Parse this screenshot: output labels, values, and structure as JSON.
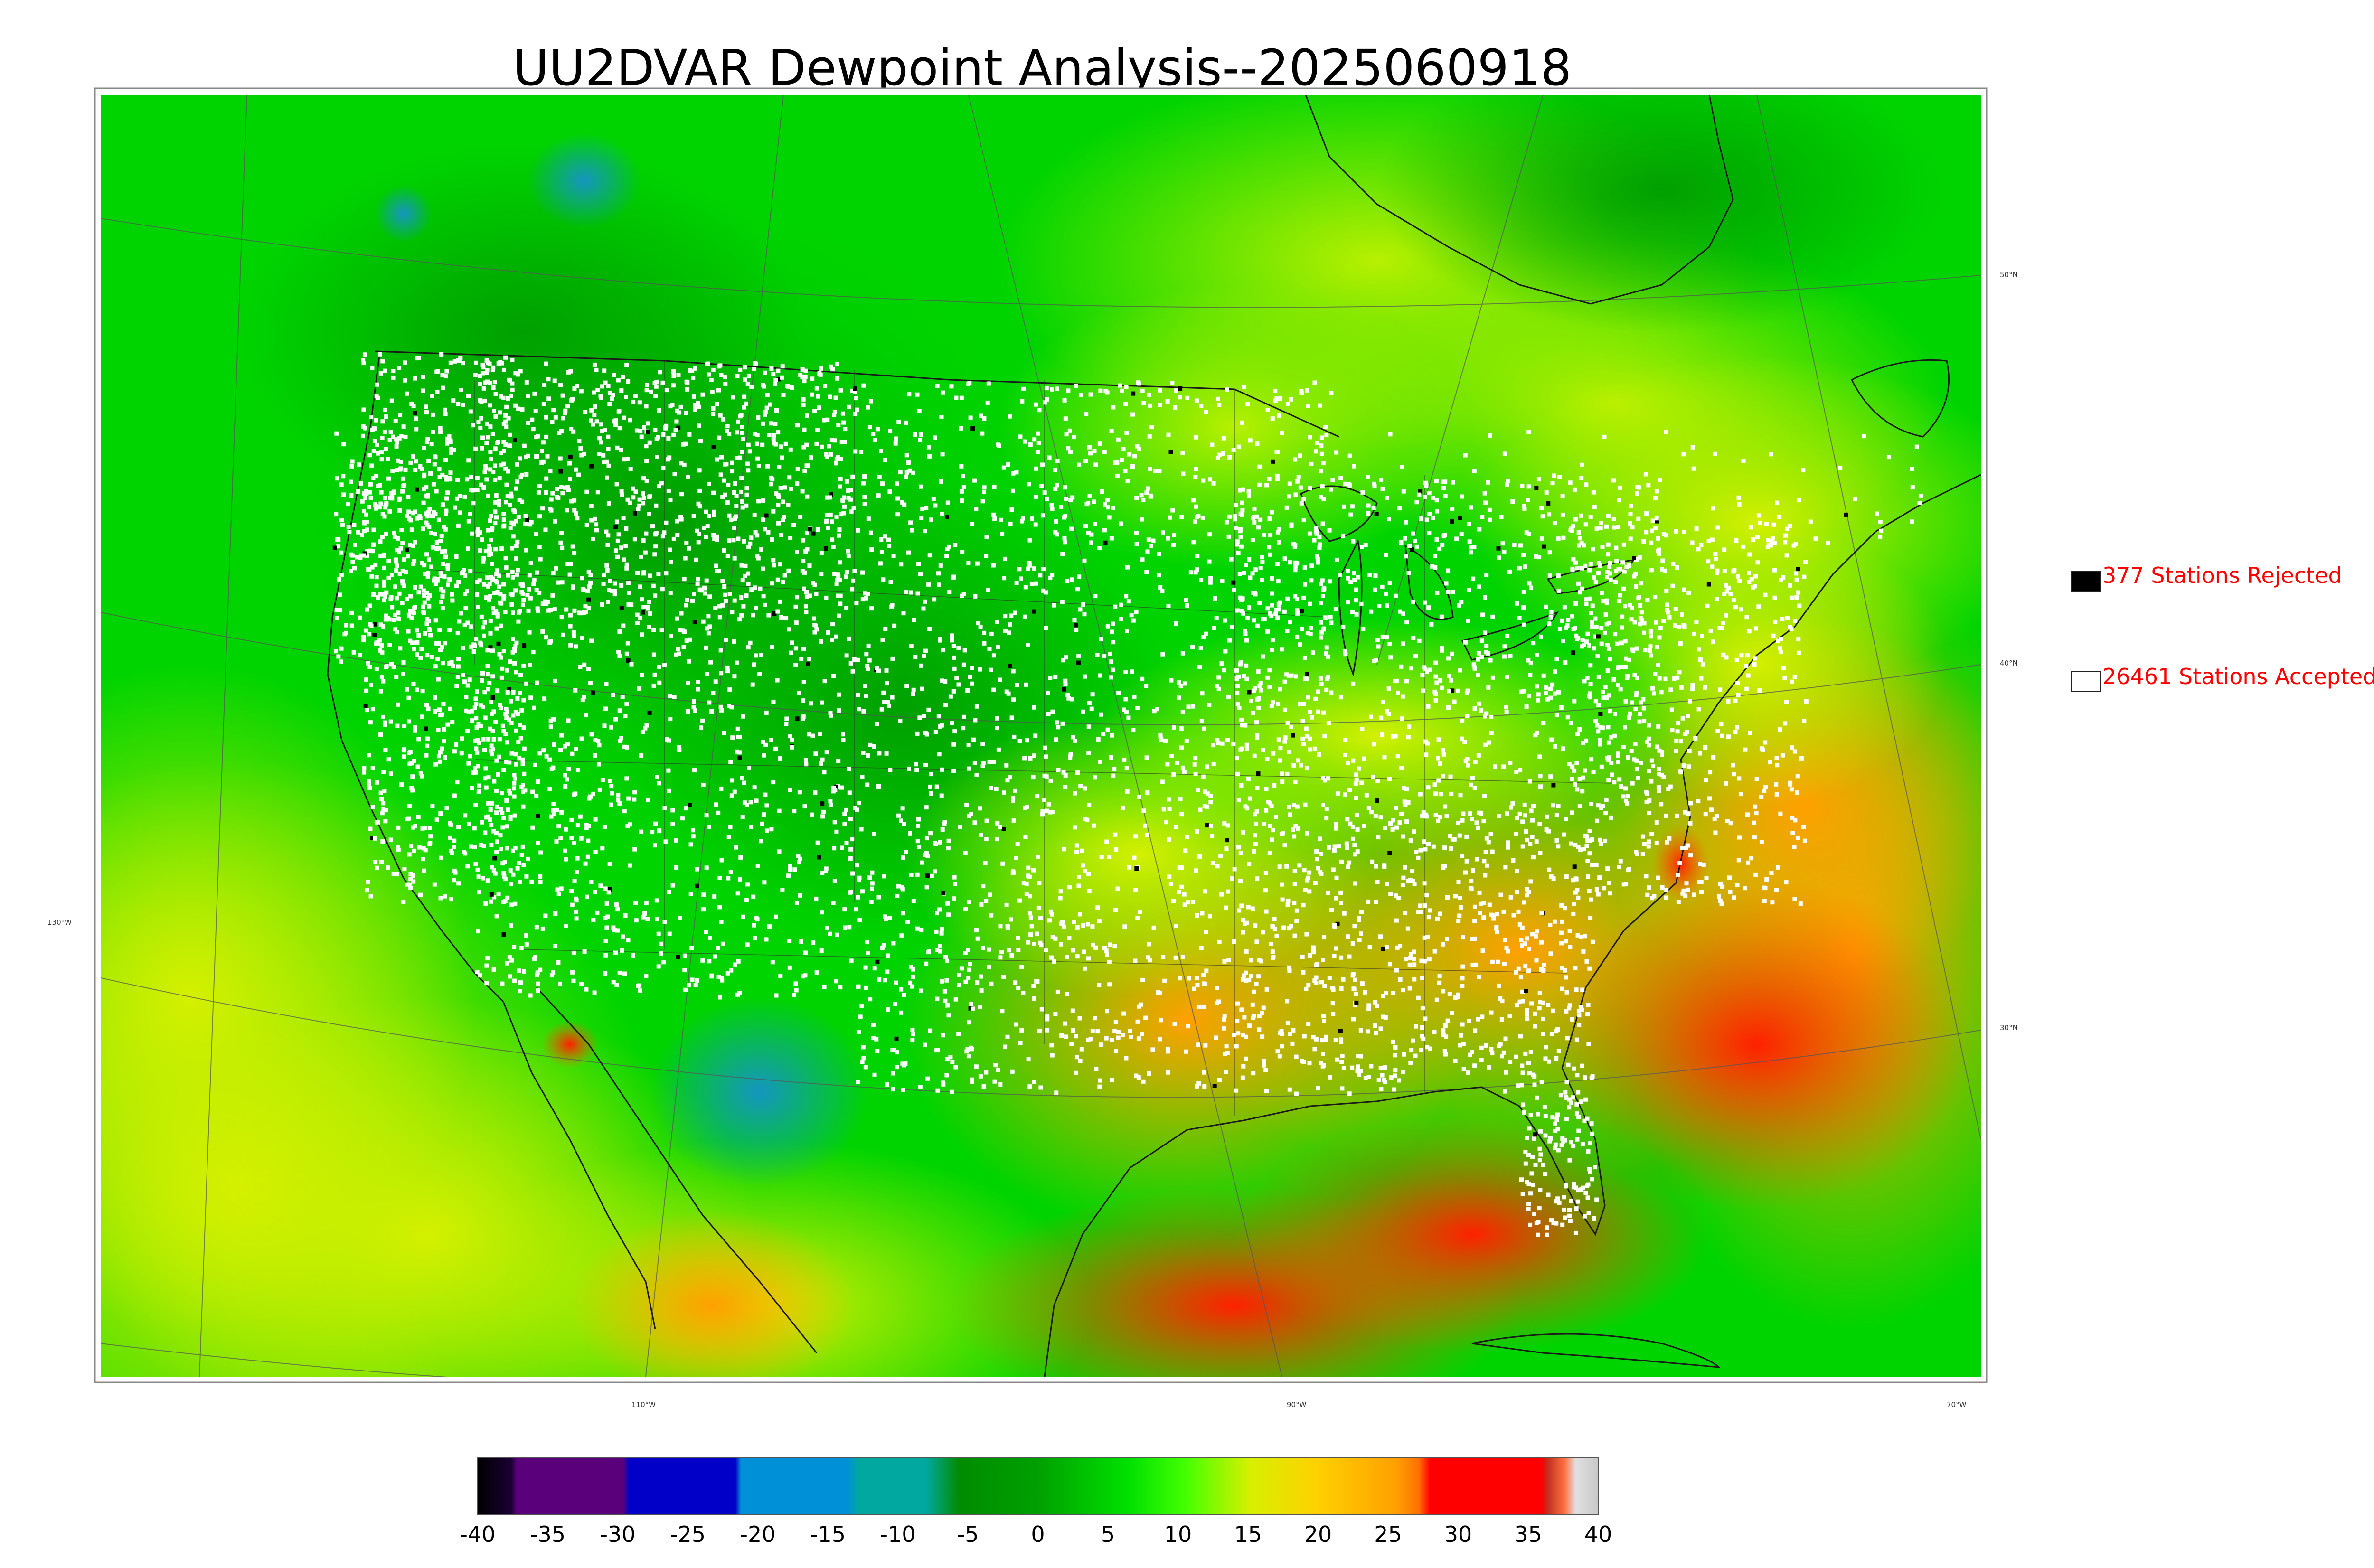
{
  "title": "UU2DVAR Dewpoint Analysis--2025060918",
  "legend": {
    "rejected": "377 Stations Rejected",
    "accepted": "26461 Stations Accepted",
    "rejected_color": "#000000",
    "accepted_color": "#ffffff"
  },
  "lat_labels": [
    "50°N",
    "40°N",
    "30°N"
  ],
  "lon_labels": [
    "130°W",
    "110°W",
    "90°W",
    "70°W"
  ],
  "colorbar": {
    "ticks": [
      "-40",
      "-35",
      "-30",
      "-25",
      "-20",
      "-15",
      "-10",
      "-5",
      "0",
      "5",
      "10",
      "15",
      "20",
      "25",
      "30",
      "35",
      "40"
    ],
    "range": [
      -40,
      40
    ],
    "colors": {
      "purple": "#5a007a",
      "blue": "#0000c8",
      "light_blue": "#0090d8",
      "teal": "#00a8a0",
      "dark_green": "#008c00",
      "green": "#00d800",
      "lime": "#7cff00",
      "yellow": "#e8f000",
      "orange": "#ffa000",
      "red": "#ff0000",
      "gray": "#c8c8c8"
    }
  },
  "map_colors": {
    "ocean_north": "#00d000",
    "land_west": "#00c000",
    "southwest_blue": "#1a9cb4",
    "southeast": "#ffa000",
    "gulf": "#ff4000",
    "pacific": "#d8ee00"
  }
}
